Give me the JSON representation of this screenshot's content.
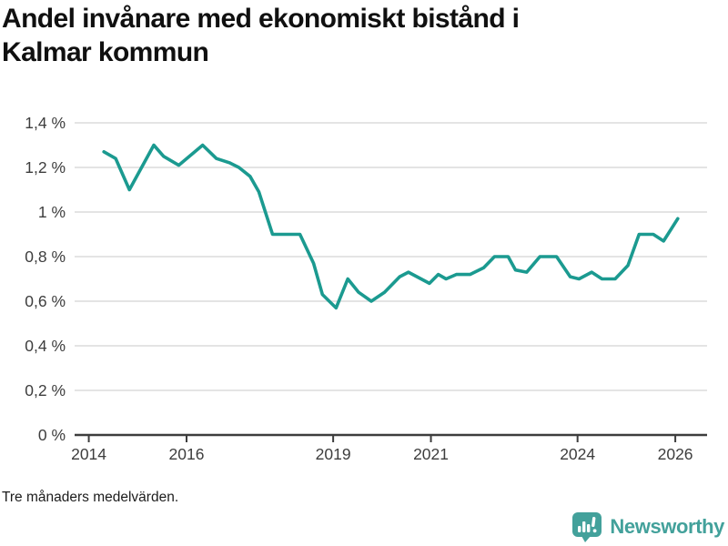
{
  "header": {
    "title_line1": "Andel invånare med ekonomiskt bistånd i",
    "title_line2": "Kalmar kommun"
  },
  "chart_data": {
    "type": "line",
    "title": "Andel invånare med ekonomiskt bistånd i Kalmar kommun",
    "unit": "%",
    "xlabel": "",
    "ylabel": "",
    "grid": true,
    "legend_position": "none",
    "ylim": [
      0,
      1.4
    ],
    "xlim": [
      2013.71,
      2026.65
    ],
    "y_ticks": [
      {
        "label": "0 %",
        "value": 0
      },
      {
        "label": "0,2 %",
        "value": 0.2
      },
      {
        "label": "0,4 %",
        "value": 0.4
      },
      {
        "label": "0,6 %",
        "value": 0.6
      },
      {
        "label": "0,8 %",
        "value": 0.8
      },
      {
        "label": "1 %",
        "value": 1.0
      },
      {
        "label": "1,2 %",
        "value": 1.2
      },
      {
        "label": "1,4 %",
        "value": 1.4
      }
    ],
    "x_ticks": [
      {
        "label": "2014",
        "value": 2014
      },
      {
        "label": "2016",
        "value": 2016
      },
      {
        "label": "2019",
        "value": 2019
      },
      {
        "label": "2021",
        "value": 2021
      },
      {
        "label": "2024",
        "value": 2024
      },
      {
        "label": "2026",
        "value": 2026
      }
    ],
    "series": [
      {
        "name": "Andel invånare med ekonomiskt bistånd, Kalmar kommun (tre månaders medelvärden)",
        "color": "#1b9a90",
        "points": [
          [
            2014.31,
            1.27
          ],
          [
            2014.55,
            1.24
          ],
          [
            2014.83,
            1.1
          ],
          [
            2015.33,
            1.3
          ],
          [
            2015.53,
            1.25
          ],
          [
            2015.84,
            1.21
          ],
          [
            2016.33,
            1.3
          ],
          [
            2016.61,
            1.24
          ],
          [
            2016.89,
            1.22
          ],
          [
            2017.07,
            1.2
          ],
          [
            2017.3,
            1.16
          ],
          [
            2017.48,
            1.09
          ],
          [
            2017.76,
            0.9
          ],
          [
            2018.32,
            0.9
          ],
          [
            2018.6,
            0.77
          ],
          [
            2018.78,
            0.63
          ],
          [
            2019.06,
            0.57
          ],
          [
            2019.3,
            0.7
          ],
          [
            2019.52,
            0.64
          ],
          [
            2019.78,
            0.6
          ],
          [
            2020.05,
            0.64
          ],
          [
            2020.36,
            0.71
          ],
          [
            2020.54,
            0.73
          ],
          [
            2020.97,
            0.68
          ],
          [
            2021.15,
            0.72
          ],
          [
            2021.31,
            0.7
          ],
          [
            2021.52,
            0.72
          ],
          [
            2021.8,
            0.72
          ],
          [
            2022.08,
            0.75
          ],
          [
            2022.3,
            0.8
          ],
          [
            2022.58,
            0.8
          ],
          [
            2022.73,
            0.74
          ],
          [
            2022.96,
            0.73
          ],
          [
            2023.23,
            0.8
          ],
          [
            2023.57,
            0.8
          ],
          [
            2023.85,
            0.71
          ],
          [
            2024.03,
            0.7
          ],
          [
            2024.29,
            0.73
          ],
          [
            2024.5,
            0.7
          ],
          [
            2024.77,
            0.7
          ],
          [
            2025.03,
            0.76
          ],
          [
            2025.26,
            0.9
          ],
          [
            2025.55,
            0.9
          ],
          [
            2025.76,
            0.87
          ],
          [
            2026.05,
            0.97
          ]
        ]
      }
    ],
    "style": {
      "line_color": "#1b9a90",
      "line_width": 3.6,
      "grid_color": "#e4e4e4",
      "axis_color": "#3d3d3d",
      "tick_text_color": "#3d3d3d"
    }
  },
  "footnote": {
    "text": "Tre månaders medelvärden."
  },
  "branding": {
    "name": "Newsworthy",
    "color": "#43a19b"
  }
}
